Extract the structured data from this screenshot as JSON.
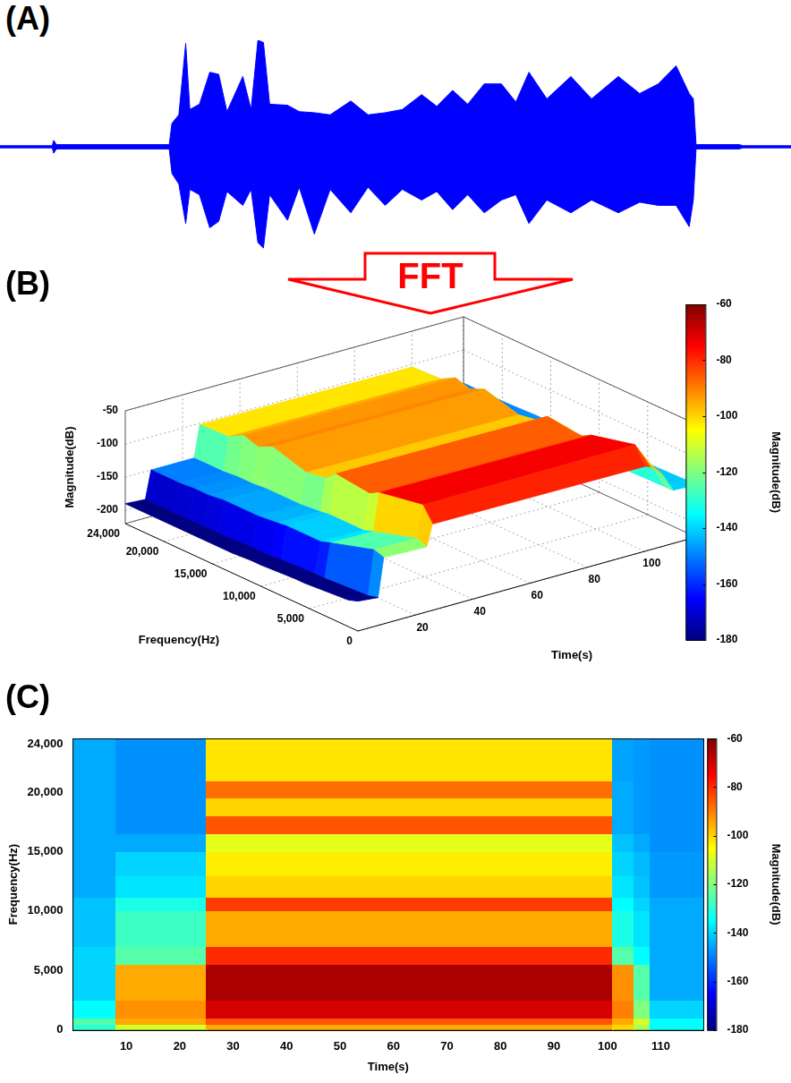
{
  "arrow_text": "FFT",
  "chart_data": [
    {
      "type": "line",
      "label": "(A)",
      "tick_labels": false,
      "grid": false,
      "xlim": [
        0,
        115
      ],
      "ylim": [
        -1,
        1
      ],
      "x": [
        0,
        7.6,
        7.8,
        8.2,
        24.6,
        25,
        26,
        27,
        27.6,
        29,
        30.5,
        31.8,
        33,
        35.3,
        36.5,
        37.5,
        38.3,
        39.2,
        41.8,
        43.5,
        45.7,
        48,
        51,
        53.5,
        56,
        58.5,
        61.3,
        63.5,
        65.8,
        68,
        70.4,
        72.9,
        75,
        76.9,
        79.5,
        83,
        86,
        89.9,
        93,
        95.7,
        98.3,
        100.2,
        100.8,
        101.2,
        107.5,
        108,
        115
      ],
      "series": [
        {
          "color": "#0000ff",
          "values": [
            0.01,
            0.01,
            0.06,
            0.02,
            0.02,
            0.22,
            0.3,
            0.97,
            0.35,
            0.4,
            0.7,
            0.68,
            0.33,
            0.66,
            0.35,
            1.0,
            0.98,
            0.4,
            0.39,
            0.33,
            0.32,
            0.3,
            0.43,
            0.3,
            0.32,
            0.35,
            0.49,
            0.38,
            0.53,
            0.4,
            0.59,
            0.59,
            0.42,
            0.7,
            0.45,
            0.66,
            0.45,
            0.66,
            0.5,
            0.59,
            0.76,
            0.5,
            0.45,
            0.02,
            0.02,
            0.01,
            0.01
          ]
        },
        {
          "color": "#0000ff",
          "values": [
            -0.01,
            -0.01,
            -0.06,
            -0.02,
            -0.02,
            -0.25,
            -0.35,
            -0.72,
            -0.4,
            -0.45,
            -0.76,
            -0.7,
            -0.42,
            -0.55,
            -0.4,
            -0.9,
            -0.95,
            -0.45,
            -0.69,
            -0.38,
            -0.82,
            -0.4,
            -0.62,
            -0.38,
            -0.55,
            -0.4,
            -0.5,
            -0.42,
            -0.59,
            -0.45,
            -0.62,
            -0.5,
            -0.45,
            -0.72,
            -0.5,
            -0.62,
            -0.5,
            -0.62,
            -0.52,
            -0.55,
            -0.55,
            -0.75,
            -0.5,
            -0.02,
            -0.02,
            -0.01,
            -0.01
          ]
        }
      ]
    },
    {
      "type": "surface",
      "label": "(B)",
      "grid": true,
      "xlabel": "Time(s)",
      "ylabel": "Frequency(Hz)",
      "zlabel": "Magnitude(dB)",
      "xlim": [
        0,
        118
      ],
      "ylim": [
        0,
        24000
      ],
      "zlim": [
        -220,
        -50
      ],
      "xticks": [
        20,
        40,
        60,
        80,
        100
      ],
      "yticks": [
        0,
        {
          "value": 5000,
          "label": "5,000"
        },
        {
          "value": 10000,
          "label": "10,000"
        },
        {
          "value": 15000,
          "label": "15,000"
        },
        {
          "value": 20000,
          "label": "20,000"
        },
        {
          "value": 24000,
          "label": "24,000"
        }
      ],
      "zticks": [
        -200,
        -150,
        -100,
        -50
      ],
      "x": [
        0,
        7,
        9,
        24,
        26,
        100,
        102,
        106,
        110,
        118
      ],
      "y": [
        0,
        1000,
        5500,
        6500,
        10000,
        11000,
        13000,
        16500,
        18000,
        19500,
        21000,
        24000
      ],
      "z": [
        [
          -175,
          -180,
          -185,
          -185,
          -188,
          -188,
          -190,
          -190,
          -190,
          -190,
          -190,
          -190
        ],
        [
          -178,
          -182,
          -186,
          -186,
          -188,
          -190,
          -190,
          -192,
          -192,
          -192,
          -192,
          -192
        ],
        [
          -120,
          -115,
          -135,
          -140,
          -140,
          -142,
          -145,
          -145,
          -148,
          -148,
          -150,
          -150
        ],
        [
          -122,
          -116,
          -136,
          -141,
          -141,
          -143,
          -146,
          -146,
          -148,
          -148,
          -150,
          -150
        ],
        [
          -90,
          -68,
          -80,
          -88,
          -82,
          -95,
          -100,
          -85,
          -95,
          -88,
          -100,
          -102
        ],
        [
          -92,
          -66,
          -82,
          -90,
          -84,
          -97,
          -102,
          -87,
          -97,
          -90,
          -102,
          -104
        ],
        [
          -95,
          -80,
          -125,
          -135,
          -135,
          -140,
          -142,
          -142,
          -145,
          -145,
          -148,
          -148
        ],
        [
          -110,
          -105,
          -135,
          -140,
          -140,
          -142,
          -145,
          -145,
          -148,
          -148,
          -150,
          -150
        ],
        [
          -140,
          -140,
          -142,
          -145,
          -145,
          -145,
          -148,
          -148,
          -148,
          -150,
          -150,
          -150
        ],
        [
          -141,
          -141,
          -143,
          -146,
          -146,
          -146,
          -148,
          -148,
          -149,
          -150,
          -150,
          -150
        ]
      ],
      "colorbar": {
        "range": [
          -180,
          -60
        ],
        "ticks": [
          -180,
          -160,
          -140,
          -120,
          -100,
          -80,
          -60
        ],
        "title": "Magnitude(dB)"
      }
    },
    {
      "type": "heatmap",
      "label": "(C)",
      "grid": false,
      "xlabel": "Time(s)",
      "ylabel": "Frequency(Hz)",
      "xlim": [
        0,
        118
      ],
      "ylim": [
        0,
        24500
      ],
      "xticks": [
        10,
        20,
        30,
        40,
        50,
        60,
        70,
        80,
        90,
        100,
        110
      ],
      "yticks": [
        0,
        {
          "value": 5000,
          "label": "5,000"
        },
        {
          "value": 10000,
          "label": "10,000"
        },
        {
          "value": 15000,
          "label": "15,000"
        },
        {
          "value": 20000,
          "label": "20,000"
        },
        {
          "value": 24000,
          "label": "24,000"
        }
      ],
      "x_edges": [
        0,
        8,
        25,
        101,
        105,
        108,
        118
      ],
      "y_edges": [
        0,
        500,
        1000,
        2500,
        5500,
        7000,
        10000,
        11200,
        13000,
        15000,
        16500,
        18000,
        19500,
        21000,
        24500
      ],
      "cells": [
        [
          -130,
          -110,
          -95,
          -100,
          -115,
          -135
        ],
        [
          -125,
          -95,
          -85,
          -95,
          -110,
          -135
        ],
        [
          -135,
          -92,
          -70,
          -90,
          -120,
          -140
        ],
        [
          -140,
          -95,
          -65,
          -92,
          -125,
          -145
        ],
        [
          -140,
          -125,
          -80,
          -125,
          -135,
          -145
        ],
        [
          -142,
          -128,
          -95,
          -132,
          -138,
          -145
        ],
        [
          -142,
          -132,
          -82,
          -135,
          -140,
          -145
        ],
        [
          -145,
          -138,
          -100,
          -138,
          -142,
          -147
        ],
        [
          -145,
          -140,
          -103,
          -140,
          -143,
          -147
        ],
        [
          -145,
          -145,
          -108,
          -142,
          -145,
          -148
        ],
        [
          -145,
          -148,
          -85,
          -145,
          -147,
          -148
        ],
        [
          -145,
          -148,
          -100,
          -145,
          -147,
          -148
        ],
        [
          -145,
          -148,
          -88,
          -145,
          -147,
          -148
        ],
        [
          -145,
          -148,
          -102,
          -146,
          -147,
          -148
        ]
      ],
      "colorbar": {
        "range": [
          -180,
          -60
        ],
        "ticks": [
          -180,
          -160,
          -140,
          -120,
          -100,
          -80,
          -60
        ],
        "title": "Magnitude(dB)"
      }
    }
  ]
}
